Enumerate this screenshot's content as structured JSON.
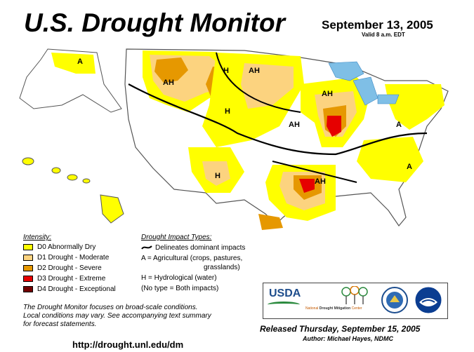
{
  "header": {
    "title": "U.S. Drought Monitor",
    "date": "September 13, 2005",
    "valid": "Valid 8 a.m. EDT"
  },
  "legend": {
    "intensity_title": "Intensity:",
    "items": [
      {
        "label": "D0 Abnormally Dry",
        "color": "#ffff00"
      },
      {
        "label": "D1 Drought - Moderate",
        "color": "#fcd37f"
      },
      {
        "label": "D2 Drought - Severe",
        "color": "#e69800"
      },
      {
        "label": "D3 Drought - Extreme",
        "color": "#e60000"
      },
      {
        "label": "D4 Drought - Exceptional",
        "color": "#730000"
      }
    ]
  },
  "impacts": {
    "title": "Drought Impact Types:",
    "boundary": "Delineates dominant impacts",
    "agricultural_1": "A = Agricultural (crops, pastures,",
    "agricultural_2": "grasslands)",
    "hydrological": "H = Hydrological (water)",
    "both": "(No type = Both impacts)"
  },
  "map_labels": [
    "A",
    "AH",
    "H",
    "AH",
    "H",
    "AH",
    "AH",
    "A",
    "H",
    "AH",
    "A"
  ],
  "footnote": {
    "line1": "The Drought Monitor focuses on broad-scale conditions.",
    "line2": "Local conditions may vary.  See accompanying text summary",
    "line3": "for forecast statements."
  },
  "url": "http://drought.unl.edu/dm",
  "released": "Released Thursday, September 15, 2005",
  "author": "Author: Michael Hayes, NDMC",
  "logos": {
    "usda": "USDA",
    "ndmc_prefix": "National",
    "ndmc_name": "Drought Mitigation",
    "ndmc_suffix": "Center"
  }
}
